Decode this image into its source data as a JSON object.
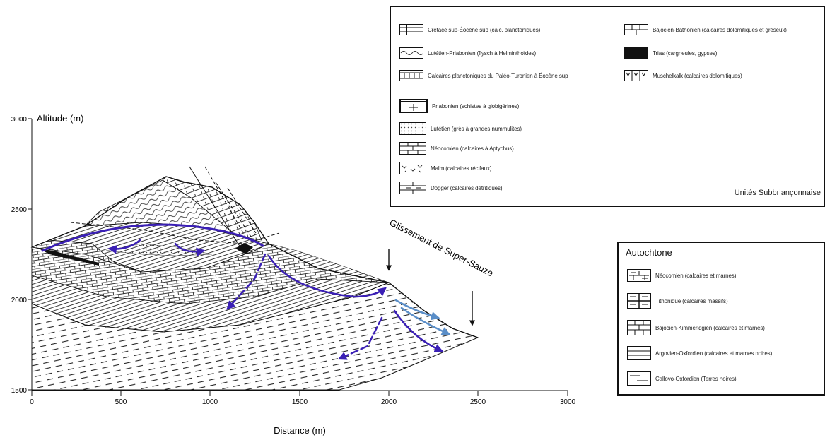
{
  "axes": {
    "y_title": "Altitude (m)",
    "x_title": "Distance (m)",
    "y_ticks": [
      "3000",
      "2500",
      "2000",
      "1500"
    ],
    "x_ticks": [
      "0",
      "500",
      "1000",
      "1500",
      "2000",
      "2500",
      "3000"
    ]
  },
  "annotations": {
    "landslide": "Glissement de Super-Sauze"
  },
  "legend_top": {
    "unit_label": "Unités Subbriançonnaise",
    "items": [
      {
        "label": "Crétacé sup-Éocène sup (calc. planctoniques)",
        "pattern": "hlines-vbar"
      },
      {
        "label": "Lutétien-Priabonien (flysch à Helminthoïdes)",
        "pattern": "wavy"
      },
      {
        "label": "Calcaires planctoniques du Paléo-Turonien à Éocène sup",
        "pattern": "vlines"
      },
      {
        "label": "Priabonien (schistes à globigérines)",
        "pattern": "cross-heavy"
      },
      {
        "label": "Lutétien (grès à grandes nummulites)",
        "pattern": "dots"
      },
      {
        "label": "Néocomien (calcaires à Aptychus)",
        "pattern": "bricks"
      },
      {
        "label": "Malm (calcaires récifaux)",
        "pattern": "reef"
      },
      {
        "label": "Dogger (calcaires détritiques)",
        "pattern": "bricks-dash"
      },
      {
        "label": "Bajocien-Bathonien (calcaires dolomitiques et gréseux)",
        "pattern": "bricks2"
      },
      {
        "label": "Trias (cargneules, gypses)",
        "pattern": "solid"
      },
      {
        "label": "Muschelkalk (calcaires dolomitiques)",
        "pattern": "vee"
      }
    ]
  },
  "legend_right": {
    "title": "Autochtone",
    "items": [
      {
        "label": "Néocomien (calcaires et marnes)",
        "pattern": "bricks-small"
      },
      {
        "label": "Tithonique (calcaires massifs)",
        "pattern": "bricks-double"
      },
      {
        "label": "Bajocien-Kimméridgien (calcaires et marnes)",
        "pattern": "bricks-grid"
      },
      {
        "label": "Argovien-Oxfordien (calcaires et marnes noires)",
        "pattern": "hlines"
      },
      {
        "label": "Callovo-Oxfordien (Terres noires)",
        "pattern": "dashes"
      }
    ]
  },
  "colors": {
    "flow_dark": "#3a1fb5",
    "flow_light": "#5a8ec8",
    "ink": "#111111"
  }
}
